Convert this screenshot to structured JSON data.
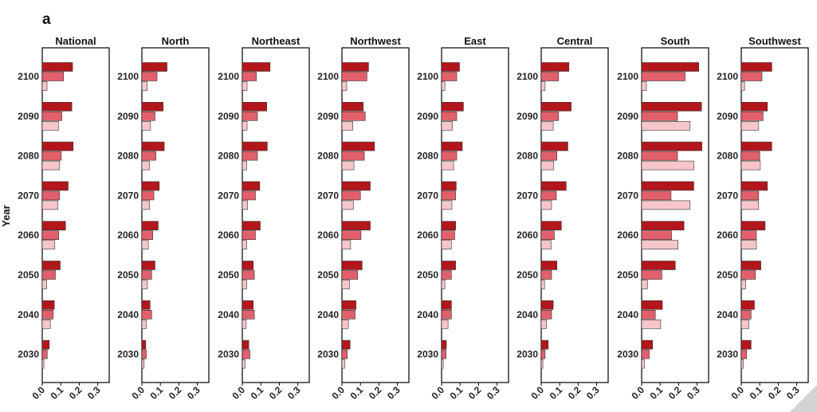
{
  "figure_label": "a",
  "y_axis_title": "Year",
  "colors": {
    "dark": "#b3161b",
    "medium": "#e2606c",
    "light": "#f6c6ca",
    "bar_stroke": "#333333",
    "panel_border": "#000000",
    "text": "#222222"
  },
  "chart_data": {
    "type": "bar",
    "orientation": "horizontal",
    "grid": false,
    "legend": "none",
    "categories": [
      "2100",
      "2090",
      "2080",
      "2070",
      "2060",
      "2050",
      "2040",
      "2030"
    ],
    "xticks": [
      "0.0",
      "0.1",
      "0.2",
      "0.3"
    ],
    "xlim": [
      0,
      0.34
    ],
    "bars_per_category": 3,
    "panels": [
      {
        "title": "National",
        "values": [
          [
            0.164,
            0.115,
            0.026
          ],
          [
            0.16,
            0.106,
            0.088
          ],
          [
            0.167,
            0.103,
            0.094
          ],
          [
            0.14,
            0.094,
            0.085
          ],
          [
            0.126,
            0.089,
            0.068
          ],
          [
            0.097,
            0.071,
            0.024
          ],
          [
            0.065,
            0.059,
            0.044
          ],
          [
            0.038,
            0.027,
            0.009
          ]
        ]
      },
      {
        "title": "North",
        "values": [
          [
            0.136,
            0.082,
            0.029
          ],
          [
            0.115,
            0.071,
            0.047
          ],
          [
            0.121,
            0.076,
            0.041
          ],
          [
            0.094,
            0.065,
            0.041
          ],
          [
            0.088,
            0.059,
            0.035
          ],
          [
            0.071,
            0.053,
            0.03
          ],
          [
            0.044,
            0.053,
            0.024
          ],
          [
            0.021,
            0.024,
            0.012
          ]
        ]
      },
      {
        "title": "Northeast",
        "values": [
          [
            0.15,
            0.076,
            0.026
          ],
          [
            0.132,
            0.082,
            0.026
          ],
          [
            0.135,
            0.082,
            0.024
          ],
          [
            0.094,
            0.071,
            0.029
          ],
          [
            0.097,
            0.071,
            0.024
          ],
          [
            0.059,
            0.065,
            0.024
          ],
          [
            0.059,
            0.065,
            0.021
          ],
          [
            0.035,
            0.041,
            0.015
          ]
        ]
      },
      {
        "title": "Northwest",
        "values": [
          [
            0.144,
            0.135,
            0.026
          ],
          [
            0.115,
            0.126,
            0.059
          ],
          [
            0.176,
            0.121,
            0.065
          ],
          [
            0.153,
            0.1,
            0.062
          ],
          [
            0.153,
            0.103,
            0.047
          ],
          [
            0.109,
            0.085,
            0.041
          ],
          [
            0.076,
            0.071,
            0.035
          ],
          [
            0.044,
            0.029,
            0.015
          ]
        ]
      },
      {
        "title": "East",
        "values": [
          [
            0.097,
            0.082,
            0.018
          ],
          [
            0.118,
            0.082,
            0.059
          ],
          [
            0.112,
            0.082,
            0.065
          ],
          [
            0.079,
            0.076,
            0.056
          ],
          [
            0.076,
            0.071,
            0.053
          ],
          [
            0.076,
            0.053,
            0.018
          ],
          [
            0.053,
            0.053,
            0.035
          ],
          [
            0.026,
            0.024,
            0.009
          ]
        ]
      },
      {
        "title": "Central",
        "values": [
          [
            0.15,
            0.094,
            0.021
          ],
          [
            0.162,
            0.094,
            0.065
          ],
          [
            0.144,
            0.085,
            0.068
          ],
          [
            0.135,
            0.082,
            0.056
          ],
          [
            0.109,
            0.071,
            0.053
          ],
          [
            0.085,
            0.056,
            0.018
          ],
          [
            0.065,
            0.056,
            0.029
          ],
          [
            0.038,
            0.021,
            0.009
          ]
        ]
      },
      {
        "title": "South",
        "values": [
          [
            0.309,
            0.235,
            0.026
          ],
          [
            0.324,
            0.194,
            0.262
          ],
          [
            0.326,
            0.194,
            0.282
          ],
          [
            0.282,
            0.159,
            0.262
          ],
          [
            0.229,
            0.162,
            0.197
          ],
          [
            0.182,
            0.109,
            0.032
          ],
          [
            0.112,
            0.074,
            0.103
          ],
          [
            0.059,
            0.041,
            0.015
          ]
        ]
      },
      {
        "title": "Southwest",
        "values": [
          [
            0.165,
            0.112,
            0.018
          ],
          [
            0.141,
            0.118,
            0.094
          ],
          [
            0.165,
            0.1,
            0.103
          ],
          [
            0.141,
            0.094,
            0.094
          ],
          [
            0.129,
            0.082,
            0.082
          ],
          [
            0.106,
            0.076,
            0.024
          ],
          [
            0.071,
            0.053,
            0.041
          ],
          [
            0.053,
            0.029,
            0.012
          ]
        ]
      }
    ]
  }
}
